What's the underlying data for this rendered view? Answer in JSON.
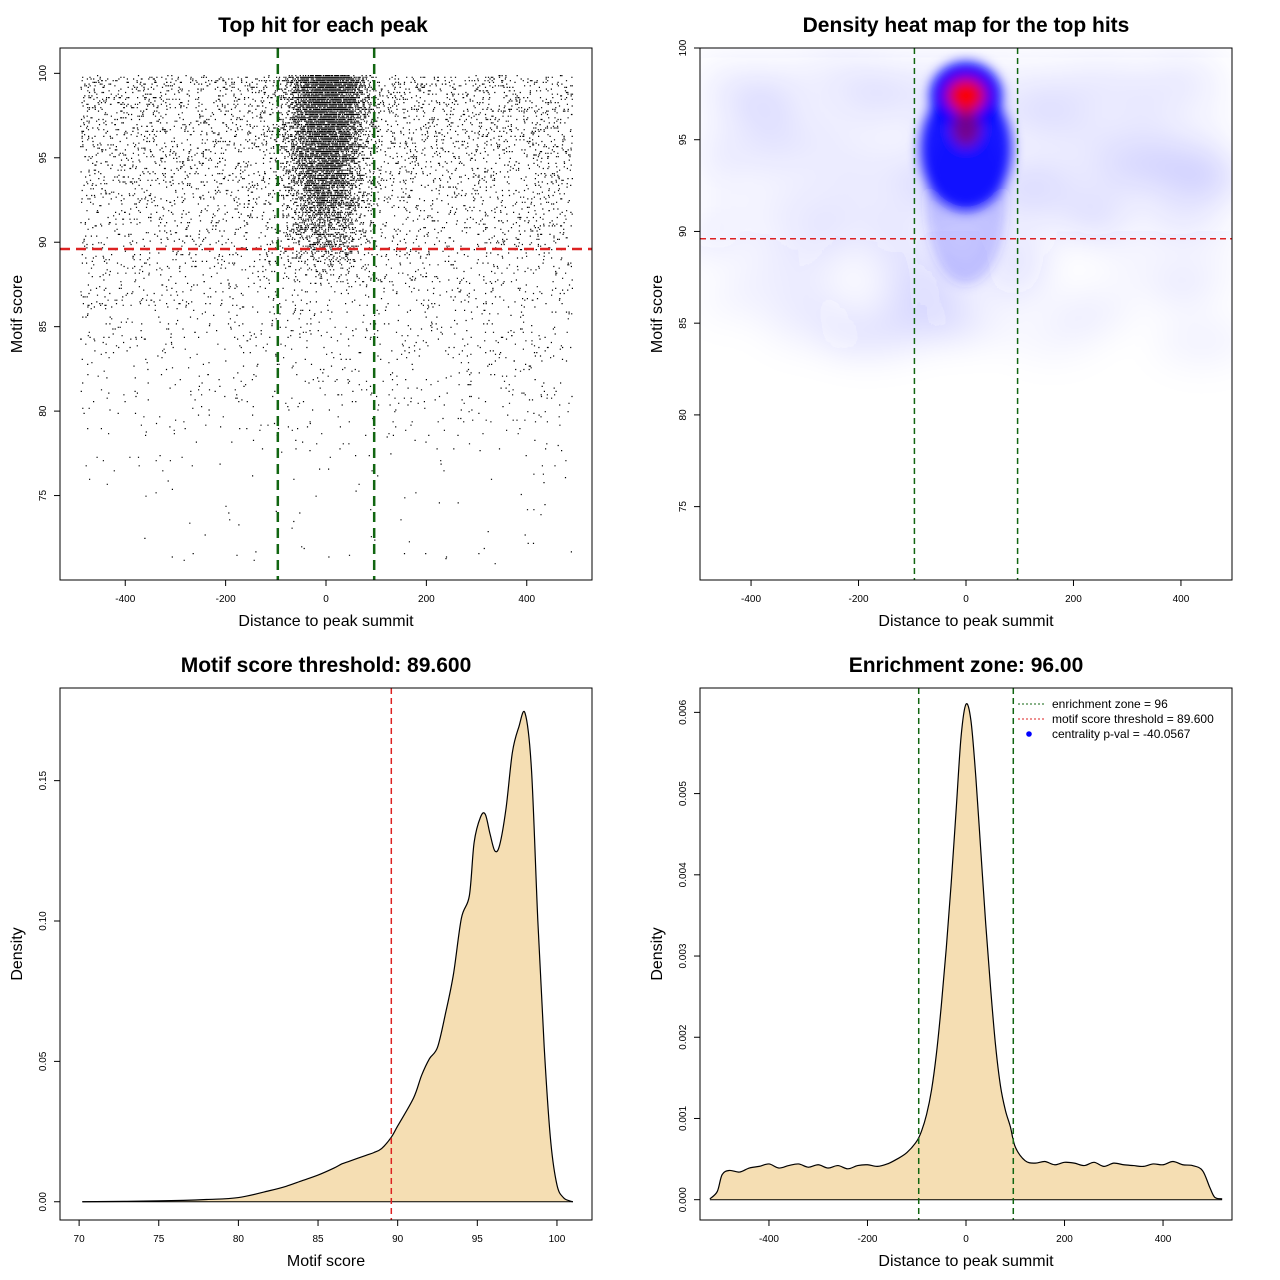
{
  "colors": {
    "points": "#000000",
    "threshold_line": "#dd2222",
    "zone_line": "#116611",
    "density_fill": "#f5deb3",
    "density_stroke": "#000000",
    "heat_low": "#ffffff",
    "heat_mid": "#0000ff",
    "heat_high": "#ff0000",
    "legend_point": "#0000ff"
  },
  "chart_data": [
    {
      "id": "scatter",
      "type": "scatter",
      "title": "Top hit for each peak",
      "xlabel": "Distance to peak summit",
      "ylabel": "Motif score",
      "xlim": [
        -530,
        530
      ],
      "ylim": [
        70,
        101.5
      ],
      "xticks": [
        -400,
        -200,
        0,
        200,
        400
      ],
      "yticks": [
        75,
        80,
        85,
        90,
        95,
        100
      ],
      "grid": false,
      "hline": 89.6,
      "vlines": [
        -96,
        96
      ],
      "point_cloud": {
        "x_range": [
          -490,
          490
        ],
        "background_score_min": 71,
        "score_max": 99.9,
        "central_peak_halfwidth": 50,
        "central_score_range": [
          87.5,
          99.9
        ]
      }
    },
    {
      "id": "heatmap",
      "type": "heatmap",
      "title": "Density heat map for the top hits",
      "xlabel": "Distance to peak summit",
      "ylabel": "Motif score",
      "xlim": [
        -495,
        495
      ],
      "ylim": [
        71,
        100
      ],
      "xticks": [
        -400,
        -200,
        0,
        200,
        400
      ],
      "yticks": [
        75,
        80,
        85,
        90,
        95,
        100
      ],
      "grid": false,
      "hline": 89.6,
      "vlines": [
        -96,
        96
      ],
      "hotspot": {
        "x": 0,
        "y": 97.4
      },
      "colorscale": [
        "white",
        "blue",
        "red"
      ]
    },
    {
      "id": "score_density",
      "type": "area",
      "title": "Motif score threshold: 89.600",
      "xlabel": "Motif score",
      "ylabel": "Density",
      "xlim": [
        68.8,
        102.2
      ],
      "ylim": [
        -0.0065,
        0.183
      ],
      "xticks": [
        70,
        75,
        80,
        85,
        90,
        95,
        100
      ],
      "yticks": [
        0.0,
        0.05,
        0.1,
        0.15
      ],
      "ytick_labels": [
        "0.00",
        "0.05",
        "0.10",
        "0.15"
      ],
      "grid": false,
      "vline": 89.6,
      "x": [
        70.2,
        75,
        78,
        80,
        82,
        83,
        84,
        85,
        86,
        86.5,
        87,
        88,
        88.5,
        89,
        89.6,
        90,
        91,
        91.5,
        92,
        92.5,
        93,
        93.5,
        94,
        94.5,
        94.8,
        95.2,
        95.5,
        95.8,
        96.1,
        96.4,
        96.8,
        97.2,
        97.6,
        98,
        98.4,
        98.8,
        99.2,
        99.6,
        100,
        100.4,
        100.8,
        101
      ],
      "values": [
        0,
        0.0003,
        0.0008,
        0.0015,
        0.004,
        0.0055,
        0.0075,
        0.0095,
        0.012,
        0.0135,
        0.0145,
        0.0165,
        0.0175,
        0.019,
        0.023,
        0.027,
        0.037,
        0.045,
        0.051,
        0.055,
        0.067,
        0.081,
        0.101,
        0.109,
        0.128,
        0.137,
        0.138,
        0.131,
        0.125,
        0.127,
        0.14,
        0.16,
        0.169,
        0.174,
        0.154,
        0.1,
        0.055,
        0.022,
        0.006,
        0.0015,
        0.0003,
        0
      ]
    },
    {
      "id": "distance_density",
      "type": "area",
      "title": "Enrichment zone: 96.00",
      "xlabel": "Distance to peak summit",
      "ylabel": "Density",
      "xlim": [
        -540,
        540
      ],
      "ylim": [
        -0.00025,
        0.0063
      ],
      "xticks": [
        -400,
        -200,
        0,
        200,
        400
      ],
      "yticks": [
        0.0,
        0.001,
        0.002,
        0.003,
        0.004,
        0.005,
        0.006
      ],
      "ytick_labels": [
        "0.000",
        "0.001",
        "0.002",
        "0.003",
        "0.004",
        "0.005",
        "0.006"
      ],
      "grid": false,
      "vlines": [
        -96,
        96
      ],
      "x": [
        -520,
        -505,
        -495,
        -480,
        -460,
        -440,
        -420,
        -400,
        -380,
        -360,
        -340,
        -320,
        -300,
        -280,
        -260,
        -240,
        -220,
        -200,
        -180,
        -160,
        -140,
        -120,
        -100,
        -90,
        -80,
        -70,
        -60,
        -50,
        -40,
        -30,
        -20,
        -10,
        0,
        10,
        20,
        30,
        40,
        50,
        60,
        70,
        80,
        90,
        100,
        120,
        140,
        160,
        180,
        200,
        220,
        240,
        260,
        280,
        300,
        320,
        340,
        360,
        380,
        400,
        420,
        440,
        460,
        480,
        495,
        505,
        520
      ],
      "values": [
        1e-05,
        0.0001,
        0.00031,
        0.00036,
        0.00034,
        0.00039,
        0.00041,
        0.00044,
        0.00039,
        0.00042,
        0.00044,
        0.0004,
        0.00043,
        0.00039,
        0.00042,
        0.00038,
        0.00042,
        0.00043,
        0.00041,
        0.00044,
        0.0005,
        0.00058,
        0.00072,
        0.00085,
        0.00105,
        0.00135,
        0.0018,
        0.0024,
        0.0031,
        0.0039,
        0.0048,
        0.0057,
        0.0061,
        0.0059,
        0.0052,
        0.0043,
        0.0034,
        0.0026,
        0.0019,
        0.0014,
        0.0011,
        0.0009,
        0.00065,
        0.00048,
        0.00045,
        0.00047,
        0.00043,
        0.00046,
        0.00045,
        0.00042,
        0.00046,
        0.00041,
        0.00045,
        0.00043,
        0.00042,
        0.00041,
        0.00044,
        0.00043,
        0.00047,
        0.00043,
        0.00042,
        0.00036,
        0.00015,
        3e-05,
        1e-05
      ],
      "legend": {
        "position": "top-right",
        "entries": [
          {
            "label": "enrichment zone = 96",
            "kind": "dashed-line",
            "color_key": "zone_line"
          },
          {
            "label": "motif score threshold = 89.600",
            "kind": "dashed-line",
            "color_key": "threshold_line"
          },
          {
            "label": "centrality p-val = -40.0567",
            "kind": "point",
            "color_key": "legend_point"
          }
        ]
      }
    }
  ]
}
